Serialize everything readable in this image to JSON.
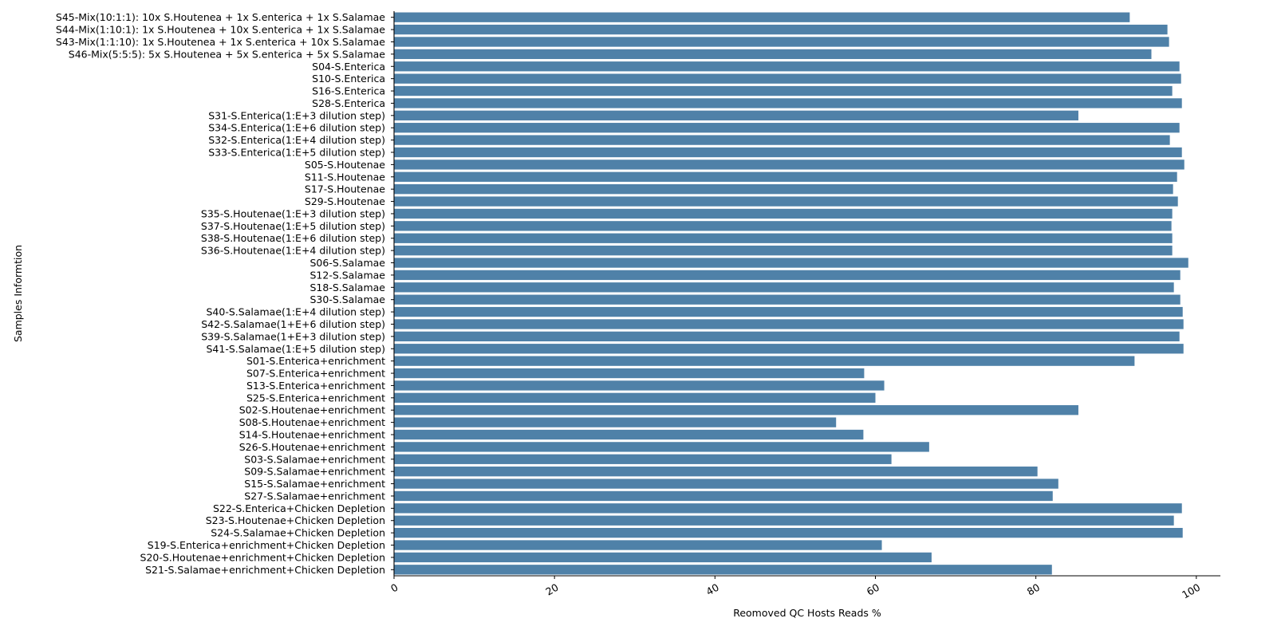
{
  "chart_data": {
    "type": "bar",
    "orientation": "horizontal",
    "bar_color": "#4f81a8",
    "xlabel": "Reomoved QC Hosts Reads %",
    "ylabel": "Samples Informtion",
    "xlim": [
      0,
      103
    ],
    "xticks": [
      0,
      20,
      40,
      60,
      80,
      100
    ],
    "grid": false,
    "categories": [
      "S45-Mix(10:1:1): 10x S.Houtenea + 1x S.enterica + 1x S.Salamae",
      "S44-Mix(1:10:1): 1x S.Houtenea + 10x S.enterica + 1x S.Salamae",
      "S43-Mix(1:1:10): 1x S.Houtenea + 1x S.enterica + 10x S.Salamae",
      "S46-Mix(5:5:5): 5x S.Houtenea + 5x S.enterica + 5x S.Salamae",
      "S04-S.Enterica",
      "S10-S.Enterica",
      "S16-S.Enterica",
      "S28-S.Enterica",
      "S31-S.Enterica(1:E+3 dilution step)",
      "S34-S.Enterica(1:E+6 dilution step)",
      "S32-S.Enterica(1:E+4 dilution step)",
      "S33-S.Enterica(1:E+5 dilution step)",
      "S05-S.Houtenae",
      "S11-S.Houtenae",
      "S17-S.Houtenae",
      "S29-S.Houtenae",
      "S35-S.Houtenae(1:E+3 dilution step)",
      "S37-S.Houtenae(1:E+5 dilution step)",
      "S38-S.Houtenae(1:E+6 dilution step)",
      "S36-S.Houtenae(1:E+4 dilution step)",
      "S06-S.Salamae",
      "S12-S.Salamae",
      "S18-S.Salamae",
      "S30-S.Salamae",
      "S40-S.Salamae(1:E+4 dilution step)",
      "S42-S.Salamae(1+E+6 dilution step)",
      "S39-S.Salamae(1+E+3 dilution step)",
      "S41-S.Salamae(1:E+5 dilution step)",
      "S01-S.Enterica+enrichment",
      "S07-S.Enterica+enrichment",
      "S13-S.Enterica+enrichment",
      "S25-S.Enterica+enrichment",
      "S02-S.Houtenae+enrichment",
      "S08-S.Houtenae+enrichment",
      "S14-S.Houtenae+enrichment",
      "S26-S.Houtenae+enrichment",
      "S03-S.Salamae+enrichment",
      "S09-S.Salamae+enrichment",
      "S15-S.Salamae+enrichment",
      "S27-S.Salamae+enrichment",
      "S22-S.Enterica+Chicken Depletion",
      "S23-S.Houtenae+Chicken Depletion",
      "S24-S.Salamae+Chicken Depletion",
      "S19-S.Enterica+enrichment+Chicken Depletion",
      "S20-S.Houtenae+enrichment+Chicken Depletion",
      "S21-S.Salamae+enrichment+Chicken Depletion"
    ],
    "values": [
      91.7,
      96.4,
      96.6,
      94.4,
      97.9,
      98.1,
      97.0,
      98.2,
      85.3,
      97.9,
      96.7,
      98.2,
      98.5,
      97.6,
      97.1,
      97.7,
      97.0,
      96.9,
      97.0,
      97.0,
      99.0,
      98.0,
      97.2,
      98.0,
      98.3,
      98.4,
      97.9,
      98.4,
      92.3,
      58.6,
      61.1,
      60.0,
      85.3,
      55.1,
      58.5,
      66.7,
      62.0,
      80.2,
      82.8,
      82.1,
      98.2,
      97.2,
      98.3,
      60.8,
      67.0,
      82.0
    ]
  }
}
